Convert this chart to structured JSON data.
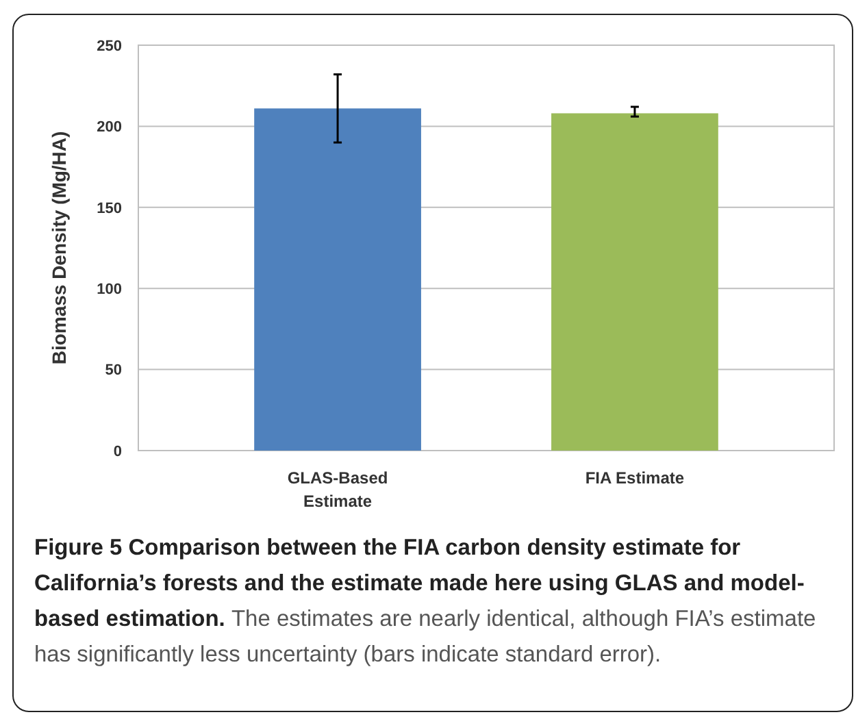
{
  "chart_data": {
    "type": "bar",
    "title": "Figure 5 Comparison between the FIA carbon density estimate for California’s forests and the estimate made here using GLAS and model-based estimation.",
    "annotations": [
      "The estimates are nearly identical, although FIA’s estimate has significantly less uncertainty (bars indicate standard error)."
    ],
    "ylabel": "Biomass Density (Mg/HA)",
    "categories": [
      "GLAS-Based Estimate",
      "FIA Estimate"
    ],
    "values": [
      211,
      208
    ],
    "colors": [
      "#4f81bd",
      "#9bbb59"
    ],
    "errors": [
      [
        190,
        232
      ],
      [
        206,
        212
      ]
    ],
    "ylim": [
      0,
      250
    ],
    "yticks": [
      0,
      50,
      100,
      150,
      200,
      250
    ],
    "grid": "y"
  }
}
